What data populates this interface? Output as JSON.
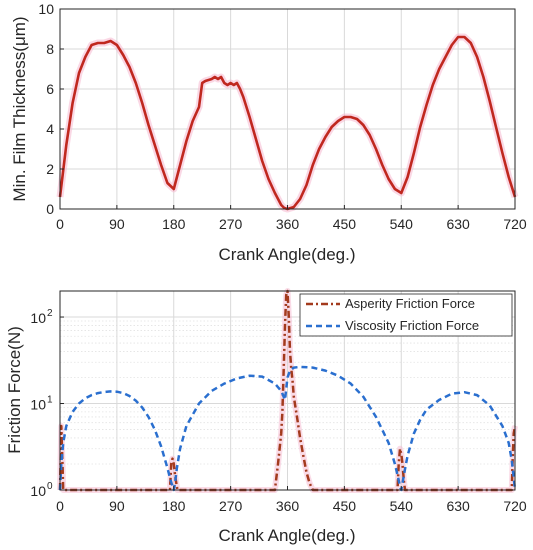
{
  "chart_data": [
    {
      "type": "line",
      "xlabel": "Crank Angle(deg.)",
      "ylabel": "Min. Film Thickness(μm)",
      "xlim": [
        0,
        720
      ],
      "ylim": [
        0,
        10
      ],
      "xticks": [
        0,
        90,
        180,
        270,
        360,
        450,
        540,
        630,
        720
      ],
      "yticks": [
        0,
        2,
        4,
        6,
        8,
        10
      ],
      "grid": true,
      "color": "#c0281f",
      "series": [
        {
          "x": [
            0,
            10,
            20,
            30,
            40,
            50,
            60,
            70,
            80,
            90,
            100,
            110,
            120,
            130,
            140,
            150,
            160,
            170,
            180,
            190,
            200,
            210,
            220,
            225,
            230,
            240,
            245,
            250,
            255,
            260,
            265,
            270,
            275,
            280,
            285,
            290,
            300,
            310,
            320,
            330,
            340,
            350,
            355,
            360,
            365,
            370,
            380,
            390,
            400,
            410,
            420,
            430,
            440,
            450,
            460,
            470,
            480,
            490,
            500,
            510,
            520,
            530,
            540,
            550,
            560,
            570,
            580,
            590,
            600,
            610,
            620,
            630,
            640,
            650,
            660,
            670,
            680,
            690,
            700,
            710,
            720
          ],
          "y": [
            0.6,
            3.2,
            5.3,
            6.8,
            7.6,
            8.2,
            8.3,
            8.3,
            8.4,
            8.2,
            7.7,
            7.1,
            6.3,
            5.3,
            4.2,
            3.2,
            2.2,
            1.3,
            1.0,
            2.2,
            3.4,
            4.4,
            5.1,
            6.3,
            6.4,
            6.5,
            6.6,
            6.5,
            6.6,
            6.3,
            6.2,
            6.3,
            6.2,
            6.3,
            6.0,
            5.6,
            4.6,
            3.5,
            2.4,
            1.5,
            0.8,
            0.2,
            0.05,
            0.0,
            0.05,
            0.1,
            0.5,
            1.2,
            2.2,
            3.0,
            3.6,
            4.1,
            4.4,
            4.6,
            4.6,
            4.5,
            4.2,
            3.7,
            3.0,
            2.2,
            1.5,
            1.0,
            0.8,
            1.6,
            2.8,
            4.1,
            5.2,
            6.2,
            7.0,
            7.6,
            8.2,
            8.6,
            8.6,
            8.3,
            7.6,
            6.6,
            5.4,
            4.1,
            2.8,
            1.6,
            0.6
          ]
        }
      ]
    },
    {
      "type": "line",
      "xlabel": "Crank Angle(deg.)",
      "ylabel": "Friction Force(N)",
      "xlim": [
        0,
        720
      ],
      "ylim": [
        1,
        200
      ],
      "yscale": "log",
      "xticks": [
        0,
        90,
        180,
        270,
        360,
        450,
        540,
        630,
        720
      ],
      "yticks": [
        1,
        10,
        100
      ],
      "yticklabels": [
        "10^0",
        "10^1",
        "10^2"
      ],
      "grid": true,
      "legend": "top-right",
      "series": [
        {
          "name": "Asperity Friction Force",
          "color": "#a33a1d",
          "style": "dash-dot",
          "x": [
            0,
            2,
            4,
            5,
            174,
            176,
            178,
            180,
            182,
            184,
            186,
            340,
            345,
            350,
            352,
            354,
            356,
            358,
            360,
            362,
            364,
            366,
            368,
            370,
            375,
            380,
            385,
            390,
            395,
            400,
            534,
            536,
            538,
            540,
            542,
            544,
            546,
            715,
            716,
            718,
            720
          ],
          "y": [
            1.0,
            5.5,
            2.0,
            1.0,
            1.0,
            2.0,
            2.3,
            2.0,
            1.5,
            1.2,
            1.0,
            1.0,
            2.0,
            4.5,
            8.0,
            25,
            80,
            180,
            200,
            100,
            40,
            25,
            18,
            12,
            7,
            4,
            2.5,
            1.6,
            1.2,
            1.0,
            1.0,
            2.0,
            3.0,
            2.6,
            2.0,
            1.3,
            1.0,
            1.0,
            2.0,
            4.5,
            5.5
          ]
        },
        {
          "name": "Viscosity Friction Force",
          "color": "#2a6fcf",
          "style": "dashed",
          "x": [
            0,
            2,
            5,
            10,
            20,
            30,
            40,
            50,
            60,
            70,
            80,
            90,
            100,
            110,
            120,
            130,
            140,
            150,
            160,
            170,
            175,
            178,
            180,
            182,
            185,
            190,
            200,
            220,
            240,
            260,
            280,
            300,
            320,
            340,
            350,
            356,
            360,
            364,
            370,
            380,
            400,
            420,
            440,
            460,
            480,
            500,
            520,
            530,
            535,
            538,
            540,
            542,
            545,
            550,
            560,
            570,
            580,
            600,
            620,
            640,
            660,
            680,
            700,
            710,
            715,
            718,
            720
          ],
          "y": [
            1.0,
            2.0,
            3.5,
            5.5,
            8,
            10,
            11.5,
            12.5,
            13.2,
            13.6,
            13.8,
            13.7,
            13.2,
            12.2,
            10.8,
            9.0,
            7.0,
            5.0,
            3.2,
            1.8,
            1.3,
            1.1,
            1.0,
            1.2,
            1.8,
            3.0,
            5.5,
            10,
            14,
            17,
            19.5,
            21,
            20.5,
            17,
            14,
            11,
            20,
            24,
            26,
            26.5,
            26,
            24,
            21,
            17,
            12,
            7,
            3.5,
            2.0,
            1.4,
            1.1,
            1.0,
            1.2,
            1.6,
            2.5,
            4.5,
            6.5,
            8.5,
            11,
            13,
            13.5,
            12.5,
            9.5,
            5.5,
            3.5,
            2.2,
            1.4,
            1.0
          ]
        }
      ]
    }
  ]
}
